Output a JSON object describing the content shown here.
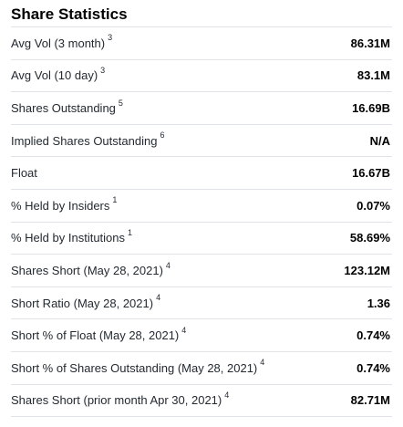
{
  "section": {
    "title": "Share Statistics"
  },
  "rows": [
    {
      "label": "Avg Vol (3 month)",
      "note": "3",
      "value": "86.31M"
    },
    {
      "label": "Avg Vol (10 day)",
      "note": "3",
      "value": "83.1M"
    },
    {
      "label": "Shares Outstanding",
      "note": "5",
      "value": "16.69B"
    },
    {
      "label": "Implied Shares Outstanding",
      "note": "6",
      "value": "N/A"
    },
    {
      "label": "Float",
      "note": "",
      "value": "16.67B"
    },
    {
      "label": "% Held by Insiders",
      "note": "1",
      "value": "0.07%"
    },
    {
      "label": "% Held by Institutions",
      "note": "1",
      "value": "58.69%"
    },
    {
      "label": "Shares Short (May 28, 2021)",
      "note": "4",
      "value": "123.12M"
    },
    {
      "label": "Short Ratio (May 28, 2021)",
      "note": "4",
      "value": "1.36"
    },
    {
      "label": "Short % of Float (May 28, 2021)",
      "note": "4",
      "value": "0.74%"
    },
    {
      "label": "Short % of Shares Outstanding (May 28, 2021)",
      "note": "4",
      "value": "0.74%"
    },
    {
      "label": "Shares Short (prior month Apr 30, 2021)",
      "note": "4",
      "value": "82.71M"
    }
  ]
}
